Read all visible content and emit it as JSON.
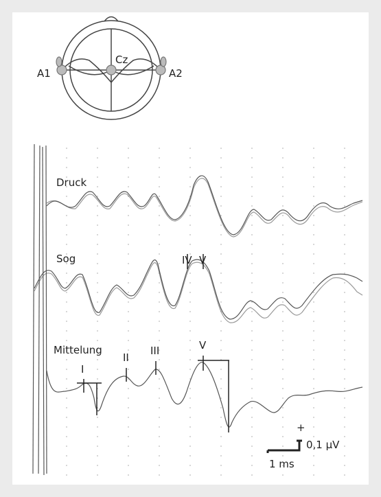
{
  "electrodes": {
    "center": "Cz",
    "left": "A1",
    "right": "A2"
  },
  "traces": [
    "Druck",
    "Sog",
    "Mittelung"
  ],
  "peaks": {
    "sog": [
      "IV",
      "V"
    ],
    "mittelung": [
      "I",
      "II",
      "III",
      "V"
    ]
  },
  "scale": {
    "polarity": "+",
    "amplitude": "0,1 µV",
    "time": "1 ms"
  }
}
